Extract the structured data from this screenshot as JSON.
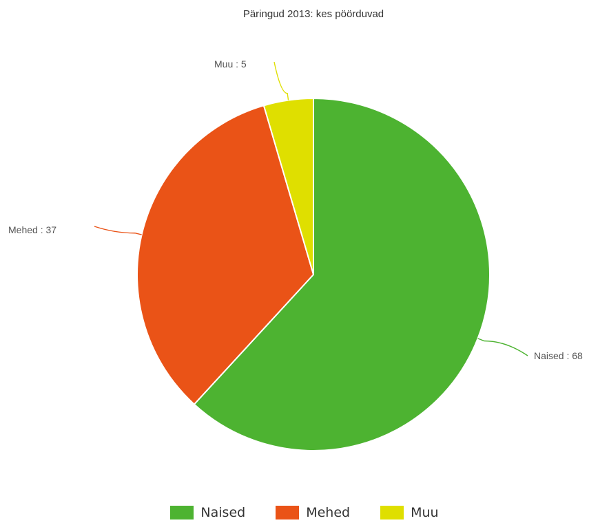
{
  "chart_data": {
    "type": "pie",
    "title": "Päringud 2013: kes pöörduvad",
    "slices": [
      {
        "name": "Naised",
        "value": 68,
        "label": "Naised : 68",
        "color": "#4db331"
      },
      {
        "name": "Mehed",
        "value": 37,
        "label": "Mehed : 37",
        "color": "#ea5317"
      },
      {
        "name": "Muu",
        "value": 5,
        "label": "Muu : 5",
        "color": "#dfdf00"
      }
    ],
    "start_angle_deg": 0,
    "direction": "clockwise",
    "slice_border_color": "#ffffff",
    "legend_position": "bottom-center"
  }
}
